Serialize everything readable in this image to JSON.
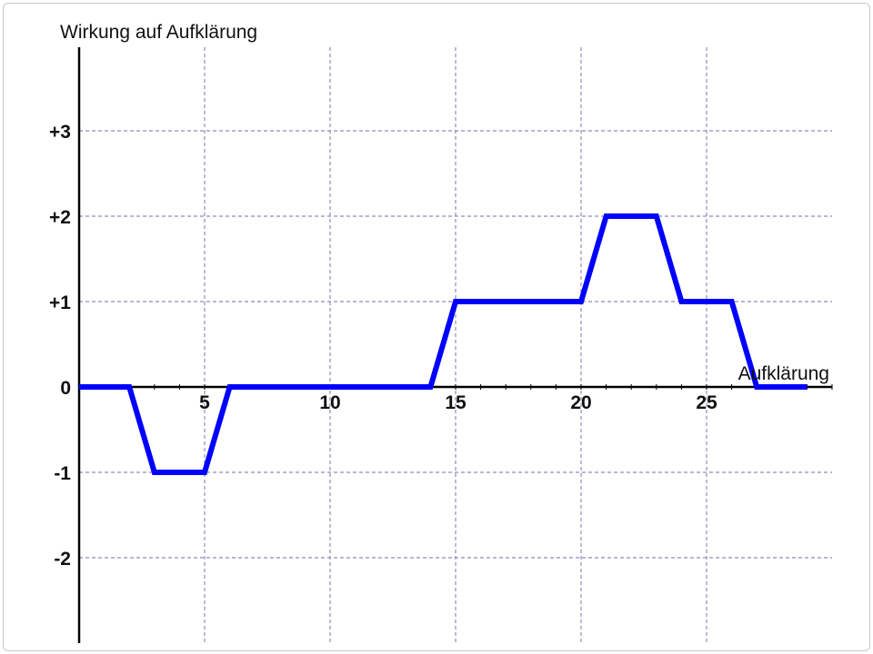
{
  "chart_data": {
    "type": "line",
    "title": "",
    "ylabel": "Wirkung auf Aufklärung",
    "xlabel": "Aufklärung",
    "xlim": [
      0,
      30
    ],
    "ylim": [
      -3,
      4
    ],
    "x_ticks": [
      {
        "value": 5,
        "label": "5"
      },
      {
        "value": 10,
        "label": "10"
      },
      {
        "value": 15,
        "label": "15"
      },
      {
        "value": 20,
        "label": "20"
      },
      {
        "value": 25,
        "label": "25"
      }
    ],
    "y_ticks": [
      {
        "value": 3,
        "label": "+3"
      },
      {
        "value": 2,
        "label": "+2"
      },
      {
        "value": 1,
        "label": "+1"
      },
      {
        "value": 0,
        "label": "0"
      },
      {
        "value": -1,
        "label": "-1"
      },
      {
        "value": -2,
        "label": "-2"
      }
    ],
    "grid": true,
    "series": [
      {
        "color": "#0000ff",
        "points": [
          [
            0,
            0
          ],
          [
            2,
            0
          ],
          [
            3,
            -1
          ],
          [
            5,
            -1
          ],
          [
            6,
            0
          ],
          [
            14,
            0
          ],
          [
            15,
            1
          ],
          [
            20,
            1
          ],
          [
            21,
            2
          ],
          [
            23,
            2
          ],
          [
            24,
            1
          ],
          [
            26,
            1
          ],
          [
            27,
            0
          ],
          [
            29,
            0
          ]
        ]
      }
    ]
  }
}
